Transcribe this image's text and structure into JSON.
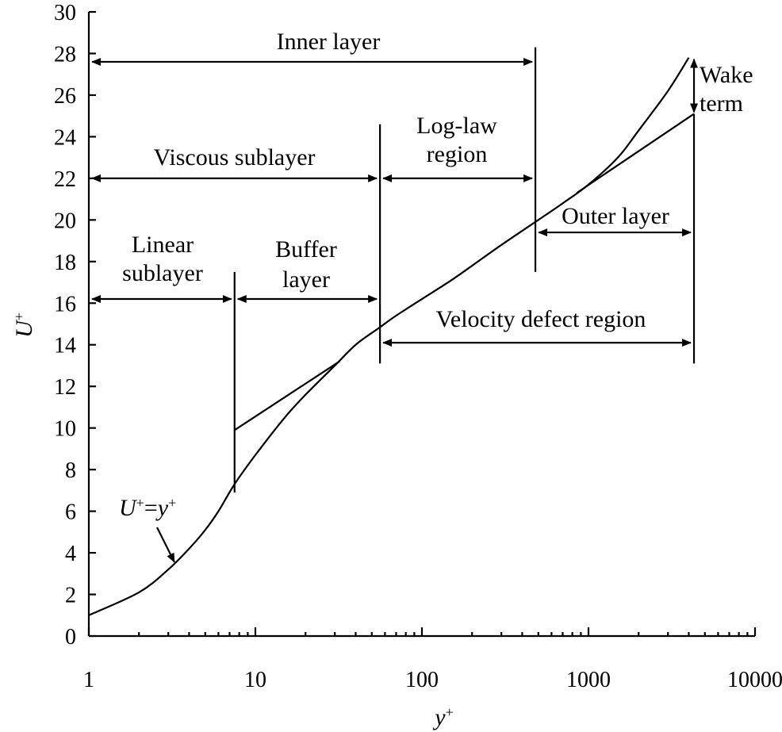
{
  "chart_data": {
    "type": "line",
    "title": "",
    "xlabel": "y",
    "xlabel_sup": "+",
    "ylabel": "U",
    "ylabel_sup": "+",
    "xscale": "log",
    "xlim": [
      1,
      10000
    ],
    "ylim": [
      0,
      30
    ],
    "x_ticks": [
      1,
      10,
      100,
      1000,
      10000
    ],
    "x_tick_labels": [
      "1",
      "10",
      "100",
      "1000",
      "10000"
    ],
    "y_ticks": [
      0,
      2,
      4,
      6,
      8,
      10,
      12,
      14,
      16,
      18,
      20,
      22,
      24,
      26,
      28,
      30
    ],
    "y_tick_labels": [
      "0",
      "2",
      "4",
      "6",
      "8",
      "10",
      "12",
      "14",
      "16",
      "18",
      "20",
      "22",
      "24",
      "26",
      "28",
      "30"
    ],
    "series": [
      {
        "name": "velocity-profile",
        "x": [
          1,
          2,
          3,
          4,
          5,
          6,
          7.5,
          10,
          15,
          20,
          30,
          40,
          55,
          70,
          100,
          150,
          200,
          300,
          500,
          700,
          1000,
          1500,
          2000,
          3000,
          4000
        ],
        "y": [
          1,
          2.1,
          3.2,
          4.2,
          5.1,
          6.0,
          7.3,
          8.7,
          10.5,
          11.6,
          13.0,
          14.0,
          14.8,
          15.4,
          16.2,
          17.1,
          17.8,
          18.8,
          20.0,
          20.8,
          21.7,
          23.0,
          24.3,
          26.2,
          27.8
        ]
      },
      {
        "name": "log-law-line-inner",
        "x": [
          7.5,
          32
        ],
        "y": [
          9.9,
          13.2
        ]
      },
      {
        "name": "log-law-line-outer",
        "x": [
          850,
          4300
        ],
        "y": [
          21.3,
          25.1
        ]
      }
    ],
    "annotations": {
      "curve_label": {
        "text_main": "U",
        "text_sup": "+",
        "text_eq": "=",
        "text_rhs": "y",
        "text_rhs_sup": "+",
        "x": 3.3,
        "y": 3.4
      },
      "regions": [
        {
          "label": "Inner layer",
          "x_start": 1,
          "x_end": 480,
          "y": 27.6,
          "label_y": 28.8
        },
        {
          "label": "Viscous sublayer",
          "x_start": 1,
          "x_end": 56,
          "y": 22.0,
          "label_y": 23.0
        },
        {
          "label_line1": "Log-law",
          "label_line2": "region",
          "x_start": 56,
          "x_end": 480,
          "y": 22.0
        },
        {
          "label_line1": "Linear",
          "label_line2": "sublayer",
          "x_start": 1,
          "x_end": 7.5,
          "y": 16.2
        },
        {
          "label_line1": "Buffer",
          "label_line2": "layer",
          "x_start": 7.5,
          "x_end": 56,
          "y": 16.2
        },
        {
          "label": "Velocity defect region",
          "x_start": 56,
          "x_end": 4300,
          "y": 14.1,
          "label_y": 14.9
        },
        {
          "label": "Outer layer",
          "x_start": 480,
          "x_end": 4300,
          "y": 19.4,
          "label_y": 19.9
        },
        {
          "label_line1": "Wake",
          "label_line2": "term",
          "x": 4300,
          "y_start": 25.1,
          "y_end": 27.8
        }
      ],
      "vertical_dividers": [
        {
          "x": 7.5,
          "y_start": 6.9,
          "y_end": 17.5
        },
        {
          "x": 56,
          "y_start": 13.1,
          "y_end": 24.6
        },
        {
          "x": 480,
          "y_start": 17.5,
          "y_end": 28.3
        },
        {
          "x": 4300,
          "y_start": 13.1,
          "y_end": 25.1
        }
      ]
    }
  }
}
